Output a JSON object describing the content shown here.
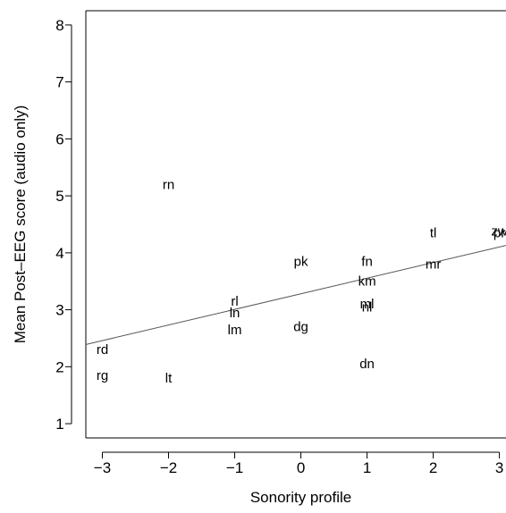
{
  "chart_data": {
    "type": "scatter",
    "title": "",
    "xlabel": "Sonority profile",
    "ylabel": "Mean Post–EEG score (audio only)",
    "xlim": [
      -3.25,
      3.1
    ],
    "ylim": [
      0.75,
      8.25
    ],
    "x_ticks": [
      -3,
      -2,
      -1,
      0,
      1,
      2,
      3
    ],
    "x_tick_labels": [
      "−3",
      "−2",
      "−1",
      "0",
      "1",
      "2",
      "3"
    ],
    "y_ticks": [
      1,
      2,
      3,
      4,
      5,
      6,
      7,
      8
    ],
    "y_tick_labels": [
      "1",
      "2",
      "3",
      "4",
      "5",
      "6",
      "7",
      "8"
    ],
    "grid": false,
    "points": [
      {
        "label": "rn",
        "x": -2,
        "y": 5.2
      },
      {
        "label": "rd",
        "x": -3,
        "y": 2.3
      },
      {
        "label": "rg",
        "x": -3,
        "y": 1.85
      },
      {
        "label": "lt",
        "x": -2,
        "y": 1.8
      },
      {
        "label": "rl",
        "x": -1,
        "y": 3.15
      },
      {
        "label": "ln",
        "x": -1,
        "y": 2.95
      },
      {
        "label": "lm",
        "x": -1,
        "y": 2.65
      },
      {
        "label": "pk",
        "x": 0,
        "y": 3.85
      },
      {
        "label": "dg",
        "x": 0,
        "y": 2.7
      },
      {
        "label": "fn",
        "x": 1,
        "y": 3.85
      },
      {
        "label": "km",
        "x": 1,
        "y": 3.5
      },
      {
        "label": "ml",
        "x": 1,
        "y": 3.1
      },
      {
        "label": "nl",
        "x": 1,
        "y": 3.05
      },
      {
        "label": "dn",
        "x": 1,
        "y": 2.05
      },
      {
        "label": "tl",
        "x": 2,
        "y": 4.35
      },
      {
        "label": "mr",
        "x": 2,
        "y": 3.8
      },
      {
        "label": "pr",
        "x": 3,
        "y": 4.35
      },
      {
        "label": "zw",
        "x": 3,
        "y": 4.38
      }
    ],
    "fit_line": {
      "x": [
        -3.25,
        3.1
      ],
      "y": [
        2.39,
        4.13
      ]
    }
  }
}
